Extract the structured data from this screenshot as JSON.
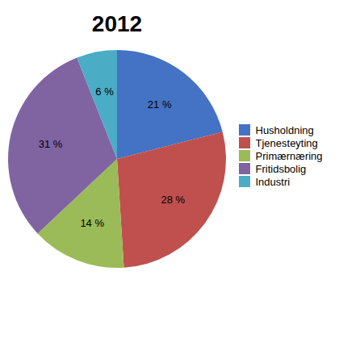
{
  "chart_data": {
    "type": "pie",
    "title": "2012",
    "categories": [
      "Husholdning",
      "Tjenesteyting",
      "Primærnæring",
      "Fritidsbolig",
      "Industri"
    ],
    "values": [
      21,
      28,
      14,
      31,
      6
    ],
    "value_labels": [
      "21 %",
      "28 %",
      "14 %",
      "31 %",
      "6 %"
    ],
    "colors": [
      "#4472C4",
      "#C0504D",
      "#9BBB59",
      "#8064A2",
      "#4BACC6"
    ],
    "data_labels": true,
    "legend": "right"
  }
}
